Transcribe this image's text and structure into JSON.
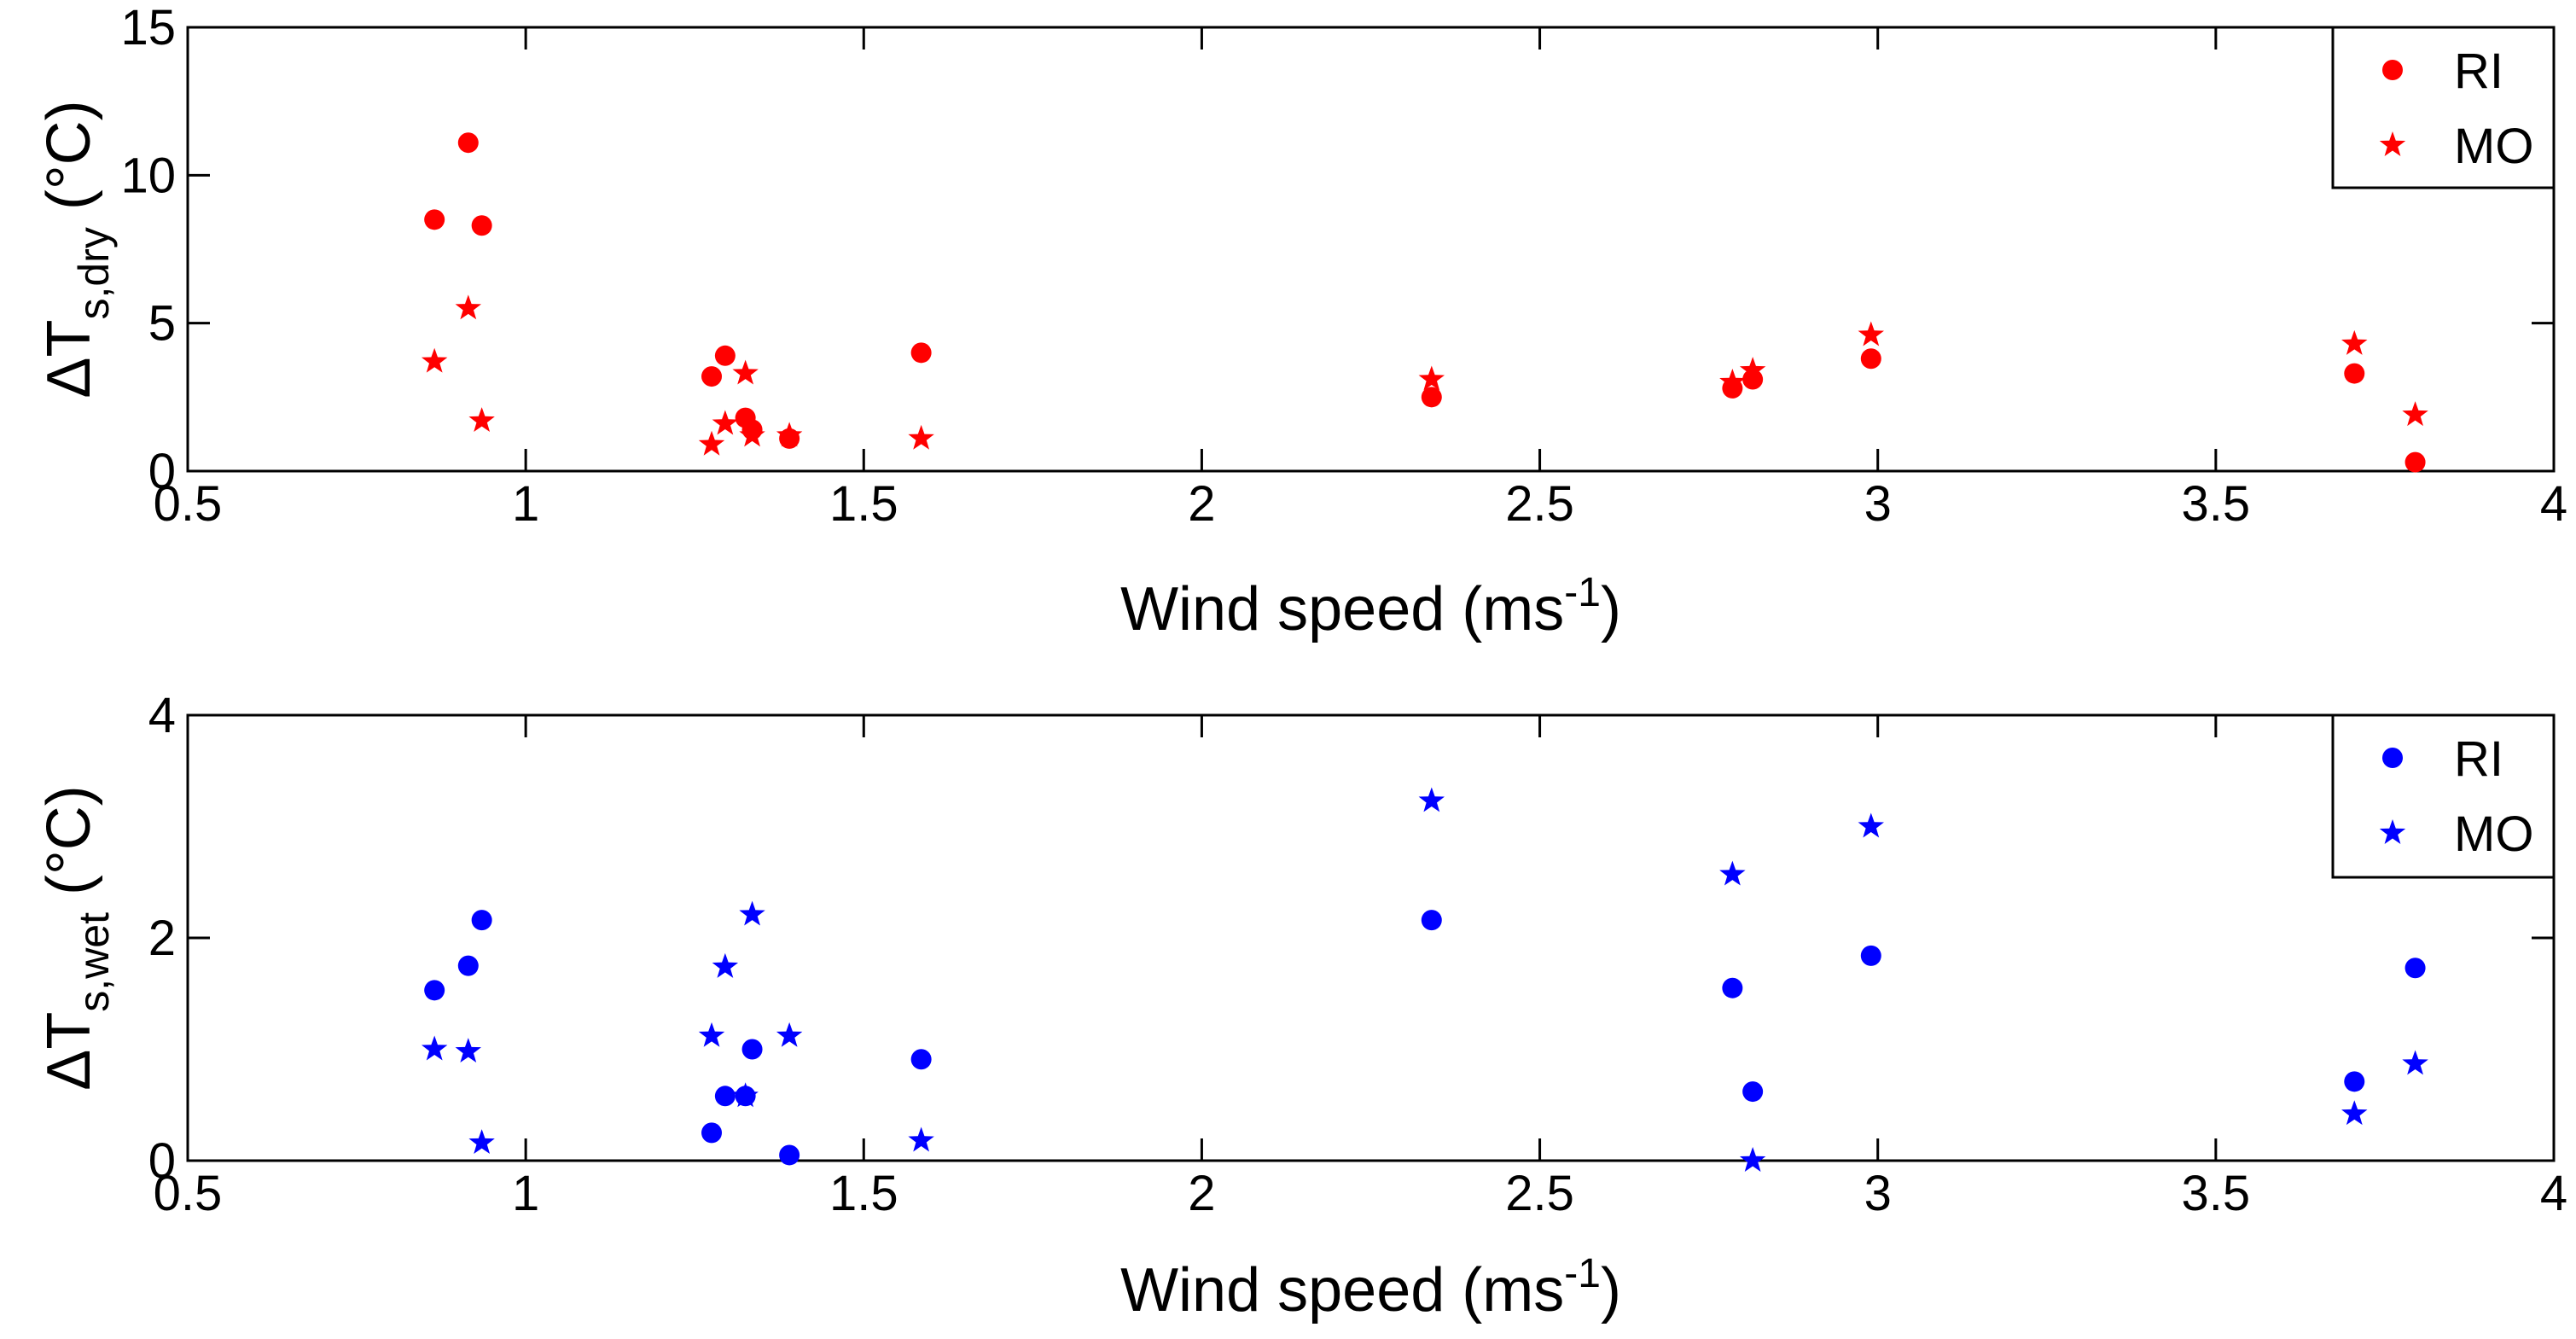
{
  "chart_data": [
    {
      "type": "scatter",
      "title": "",
      "xlabel": "Wind speed (ms⁻¹)",
      "ylabel": "ΔT s,dry (°C)",
      "xlabel_parts": {
        "main": "Wind speed (ms",
        "sup": "-1",
        "end": ")"
      },
      "ylabel_parts": {
        "main": "ΔT",
        "sub": "s,dry",
        "end": " (°C)"
      },
      "xlim": [
        0.5,
        4
      ],
      "ylim": [
        0,
        15
      ],
      "xticks": [
        "0.5",
        "1",
        "1.5",
        "2",
        "2.5",
        "3",
        "3.5",
        "4"
      ],
      "yticks": [
        "0",
        "5",
        "10",
        "15"
      ],
      "grid": false,
      "legend_position": "top-right",
      "color": "#ff0000",
      "series": [
        {
          "name": "RI",
          "marker": "circle",
          "x": [
            0.865,
            0.915,
            0.935,
            1.275,
            1.295,
            1.325,
            1.335,
            1.39,
            1.585,
            2.34,
            2.785,
            2.815,
            2.99,
            3.705,
            3.795
          ],
          "y": [
            8.5,
            11.1,
            8.3,
            3.2,
            3.9,
            1.8,
            1.4,
            1.1,
            4.0,
            2.5,
            2.8,
            3.1,
            3.8,
            3.3,
            0.3
          ]
        },
        {
          "name": "MO",
          "marker": "star",
          "x": [
            0.865,
            0.915,
            0.935,
            1.275,
            1.295,
            1.325,
            1.335,
            1.39,
            1.585,
            2.34,
            2.785,
            2.815,
            2.99,
            3.705,
            3.795
          ],
          "y": [
            3.7,
            5.5,
            1.7,
            0.9,
            1.6,
            3.3,
            1.2,
            1.2,
            1.1,
            3.1,
            3.0,
            3.4,
            4.6,
            4.3,
            1.9
          ]
        }
      ]
    },
    {
      "type": "scatter",
      "title": "",
      "xlabel": "Wind speed (ms⁻¹)",
      "ylabel": "ΔT s,wet (°C)",
      "xlabel_parts": {
        "main": "Wind speed (ms",
        "sup": "-1",
        "end": ")"
      },
      "ylabel_parts": {
        "main": "ΔT",
        "sub": "s,wet",
        "end": " (°C)"
      },
      "xlim": [
        0.5,
        4
      ],
      "ylim": [
        0,
        4
      ],
      "xticks": [
        "0.5",
        "1",
        "1.5",
        "2",
        "2.5",
        "3",
        "3.5",
        "4"
      ],
      "yticks": [
        "0",
        "2",
        "4"
      ],
      "grid": false,
      "legend_position": "top-right",
      "color": "#0000ff",
      "series": [
        {
          "name": "RI",
          "marker": "circle",
          "x": [
            0.865,
            0.915,
            0.935,
            1.275,
            1.295,
            1.325,
            1.335,
            1.39,
            1.585,
            2.34,
            2.785,
            2.815,
            2.99,
            3.705,
            3.795
          ],
          "y": [
            1.53,
            1.75,
            2.16,
            0.25,
            0.58,
            0.58,
            1.0,
            0.05,
            0.91,
            2.16,
            1.55,
            0.62,
            1.84,
            0.71,
            1.73
          ]
        },
        {
          "name": "MO",
          "marker": "star",
          "x": [
            0.865,
            0.915,
            0.935,
            1.275,
            1.295,
            1.325,
            1.335,
            1.39,
            1.585,
            2.34,
            2.785,
            2.815,
            2.99,
            3.705,
            3.795
          ],
          "y": [
            1.0,
            0.98,
            0.16,
            1.12,
            1.74,
            0.58,
            2.21,
            1.12,
            0.18,
            3.23,
            2.57,
            0.0,
            3.0,
            0.42,
            0.87
          ]
        }
      ]
    }
  ]
}
